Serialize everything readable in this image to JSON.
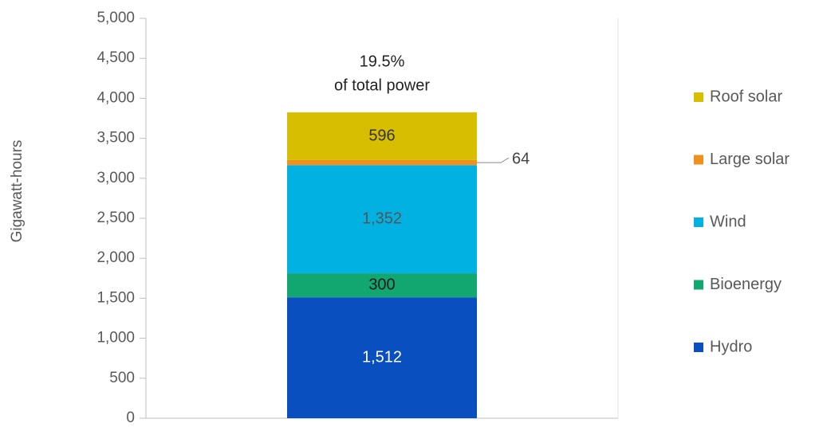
{
  "chart_data": {
    "type": "stacked_bar",
    "y_label": "Gigawatt-hours",
    "annotation": [
      "19.5%",
      "of total power"
    ],
    "categories": [
      null
    ],
    "series": [
      {
        "name": "Hydro",
        "color": "#0a4fbf",
        "label_color": "#ffffff",
        "values": [
          1512
        ],
        "value_labels": [
          "1,512"
        ]
      },
      {
        "name": "Bioenergy",
        "color": "#12a670",
        "label_color": "#1a1a1a",
        "values": [
          300
        ],
        "value_labels": [
          "300"
        ]
      },
      {
        "name": "Wind",
        "color": "#00b1e1",
        "label_color": "#555555",
        "values": [
          1352
        ],
        "value_labels": [
          "1,352"
        ]
      },
      {
        "name": "Large solar",
        "color": "#f0901e",
        "label_color": "#444444",
        "values": [
          64
        ],
        "value_labels": [
          "64"
        ]
      },
      {
        "name": "Roof solar",
        "color": "#d8be00",
        "label_color": "#333333",
        "values": [
          596
        ],
        "value_labels": [
          "596"
        ]
      }
    ],
    "ylim": [
      0,
      5000
    ],
    "yticks": [
      0,
      500,
      {
        "value": 1000,
        "label": "1,000"
      },
      {
        "value": 1500,
        "label": "1,500"
      },
      {
        "value": 2000,
        "label": "2,000"
      },
      {
        "value": 2500,
        "label": "2,500"
      },
      {
        "value": 3000,
        "label": "3,000"
      },
      {
        "value": 3500,
        "label": "3,500"
      },
      {
        "value": 4000,
        "label": "4,000"
      },
      {
        "value": 4500,
        "label": "4,500"
      },
      {
        "value": 5000,
        "label": "5,000"
      }
    ],
    "legend": "right"
  }
}
